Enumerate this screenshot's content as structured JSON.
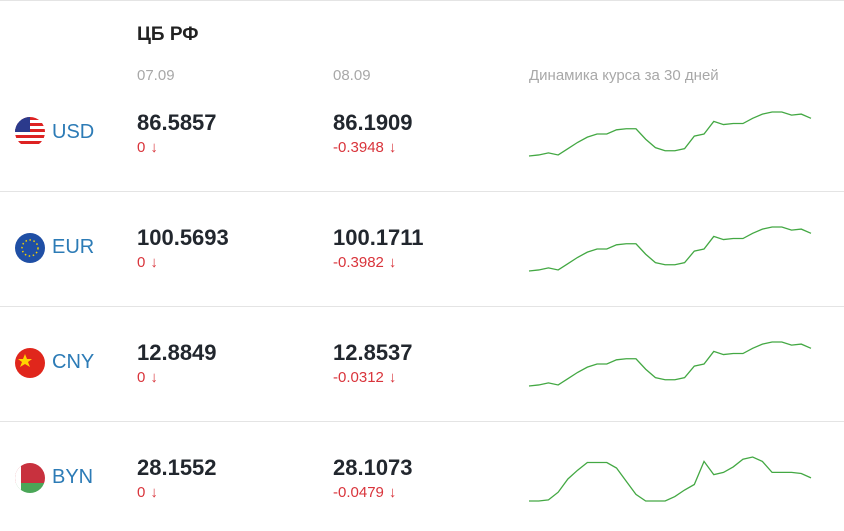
{
  "header": {
    "title": "ЦБ РФ",
    "date1": "07.09",
    "date2": "08.09",
    "trend_label": "Динамика курса за 30 дней"
  },
  "rows": [
    {
      "code": "USD",
      "rate1": 86.5857,
      "change1": 0,
      "arrow1": "↓",
      "rate2": 86.1909,
      "change2": -0.3948,
      "arrow2": "↓",
      "trend": [
        78.99,
        79.19,
        79.59,
        79.19,
        80.39,
        81.59,
        82.59,
        83.19,
        83.19,
        83.99,
        84.19,
        84.19,
        82.19,
        80.59,
        79.99,
        79.99,
        80.39,
        82.79,
        83.19,
        85.59,
        84.99,
        85.19,
        85.19,
        86.19,
        86.99,
        87.39,
        87.39,
        86.79,
        86.99,
        86.19
      ]
    },
    {
      "code": "EUR",
      "rate1": 100.5693,
      "change1": 0,
      "arrow1": "↓",
      "rate2": 100.1711,
      "change2": -0.3982,
      "arrow2": "↓",
      "trend": [
        91.17,
        91.42,
        91.92,
        91.42,
        92.92,
        94.42,
        95.67,
        96.42,
        96.42,
        97.42,
        97.67,
        97.67,
        95.17,
        93.17,
        92.67,
        92.67,
        93.17,
        95.92,
        96.42,
        99.42,
        98.67,
        98.92,
        98.92,
        100.17,
        101.17,
        101.67,
        101.67,
        100.92,
        101.17,
        100.17
      ]
    },
    {
      "code": "CNY",
      "rate1": 12.8849,
      "change1": 0,
      "arrow1": "↓",
      "rate2": 12.8537,
      "change2": -0.0312,
      "arrow2": "↓",
      "trend": [
        11.77,
        11.8,
        11.86,
        11.8,
        11.98,
        12.16,
        12.31,
        12.4,
        12.4,
        12.52,
        12.55,
        12.55,
        12.25,
        12.01,
        11.95,
        11.95,
        12.01,
        12.34,
        12.4,
        12.76,
        12.67,
        12.7,
        12.7,
        12.85,
        12.97,
        13.03,
        13.03,
        12.94,
        12.97,
        12.85
      ]
    },
    {
      "code": "BYN",
      "rate1": 28.1552,
      "change1": 0,
      "arrow1": "↓",
      "rate2": 28.1073,
      "change2": -0.0479,
      "arrow2": "↓",
      "trend": [
        27.06,
        27.06,
        27.11,
        27.46,
        28.06,
        28.46,
        28.81,
        28.81,
        28.81,
        28.56,
        27.96,
        27.36,
        27.06,
        27.06,
        27.06,
        27.26,
        27.56,
        27.81,
        28.86,
        28.26,
        28.36,
        28.61,
        28.96,
        29.06,
        28.86,
        28.36,
        28.36,
        28.36,
        28.31,
        28.11
      ]
    }
  ]
}
